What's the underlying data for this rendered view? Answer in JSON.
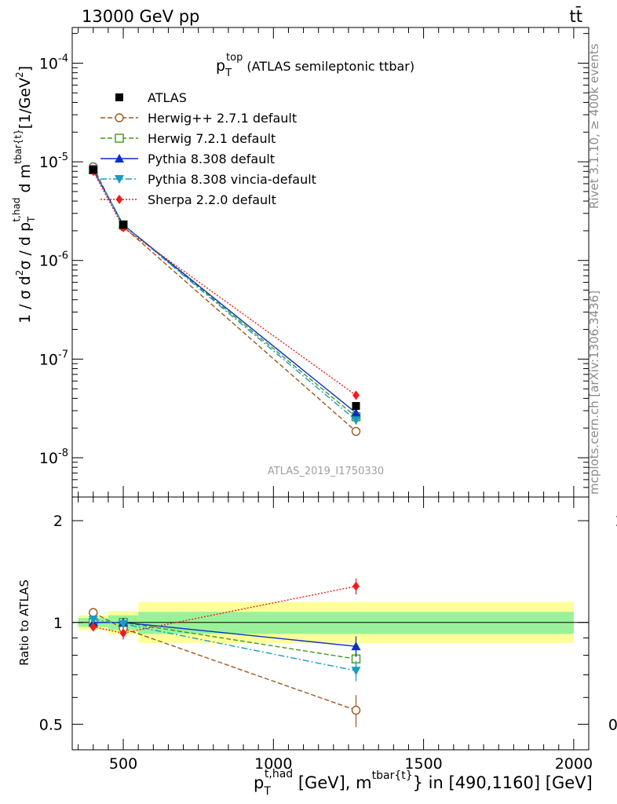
{
  "header": {
    "beam_label": "13000 GeV pp",
    "process_label": "tt̄"
  },
  "side_labels": {
    "rivet": "Rivet 3.1.10, ≥ 400k events",
    "mcplots": "mcplots.cern.ch [arXiv:1306.3436]"
  },
  "colors": {
    "ATLAS": "#000000",
    "Herwig++ 2.7.1 default": "#a0561d",
    "Herwig 7.2.1 default": "#3d9a1b",
    "Pythia 8.308 default": "#0a2fc8",
    "Pythia 8.308 vincia-default": "#1a9cc0",
    "Sherpa 2.2.0 default": "#ee1c1c",
    "band_inner": "#99f299",
    "band_outer": "#ffff99"
  },
  "chart_data": [
    {
      "type": "line",
      "panel": "main",
      "title_main": "p",
      "title_sup": "top",
      "title_sub": "T",
      "title_rest": " (ATLAS semileptonic ttbar)",
      "watermark": "ATLAS_2019_I1750330",
      "ylabel": "1 / σ d²σ / d pT^t,had d m^tbar{t} [1/GeV²]",
      "ylabel_parts": {
        "a": "1 / σ d",
        "b": "2",
        "c": "σ / d p",
        "d": "t,had",
        "e": "T",
        "f": " d m",
        "g": "tbar{t}",
        "h": "[1/GeV",
        "i": "2",
        "j": "]"
      },
      "yscale": "log",
      "ylim": [
        4e-09,
        0.00023
      ],
      "xlim": [
        330,
        2050
      ],
      "y_ticks": [
        {
          "value": 1e-08,
          "base": "10",
          "exp": "-8"
        },
        {
          "value": 1e-07,
          "base": "10",
          "exp": "-7"
        },
        {
          "value": 1e-06,
          "base": "10",
          "exp": "-6"
        },
        {
          "value": 1e-05,
          "base": "10",
          "exp": "-5"
        },
        {
          "value": 0.0001,
          "base": "10",
          "exp": "-4"
        }
      ],
      "x": [
        400,
        500,
        1275
      ],
      "series": [
        {
          "name": "ATLAS",
          "marker": "square-filled",
          "line": "none",
          "values": [
            8.3e-06,
            2.3e-06,
            3.35e-08
          ]
        },
        {
          "name": "Herwig++ 2.7.1 default",
          "marker": "circle-open",
          "line": "dashed",
          "values": [
            8.9e-06,
            2.2e-06,
            1.85e-08
          ]
        },
        {
          "name": "Herwig 7.2.1 default",
          "marker": "square-open",
          "line": "dashed",
          "values": [
            8.3e-06,
            2.3e-06,
            2.6e-08
          ]
        },
        {
          "name": "Pythia 8.308 default",
          "marker": "triangle-up",
          "line": "solid",
          "values": [
            8.3e-06,
            2.3e-06,
            2.85e-08
          ]
        },
        {
          "name": "Pythia 8.308 vincia-default",
          "marker": "triangle-down",
          "line": "dashdot",
          "values": [
            8.5e-06,
            2.3e-06,
            2.4e-08
          ]
        },
        {
          "name": "Sherpa 2.2.0 default",
          "marker": "diamond",
          "line": "dotted",
          "values": [
            8e-06,
            2.15e-06,
            4.3e-08
          ]
        }
      ]
    },
    {
      "type": "line",
      "panel": "ratio",
      "ylabel": "Ratio to ATLAS",
      "yscale": "log",
      "ylim": [
        0.42,
        2.35
      ],
      "xlim": [
        330,
        2050
      ],
      "y_ticks": [
        {
          "value": 0.5,
          "label": "0.5"
        },
        {
          "value": 1,
          "label": "1"
        },
        {
          "value": 2,
          "label": "2"
        }
      ],
      "x_ticks": [
        {
          "value": 500,
          "label": "500"
        },
        {
          "value": 1000,
          "label": "1000"
        },
        {
          "value": 1500,
          "label": "1500"
        },
        {
          "value": 2000,
          "label": "2000"
        }
      ],
      "xlabel": "pT^t,had [GeV], m^tbar{t} in [490,1160] [GeV]",
      "xlabel_parts": {
        "a": "p",
        "b": "t,had",
        "c": "T",
        "d": " [GeV], m",
        "e": "tbar{t}",
        "f": "} in [490,1160] [GeV]"
      },
      "bands": [
        {
          "x_range": [
            350,
            450
          ],
          "inner": [
            0.97,
            1.03
          ],
          "outer": [
            0.95,
            1.05
          ]
        },
        {
          "x_range": [
            450,
            550
          ],
          "inner": [
            0.95,
            1.05
          ],
          "outer": [
            0.92,
            1.08
          ]
        },
        {
          "x_range": [
            550,
            2000
          ],
          "inner": [
            0.925,
            1.075
          ],
          "outer": [
            0.87,
            1.15
          ]
        }
      ],
      "x": [
        400,
        500,
        1275
      ],
      "series": [
        {
          "name": "Herwig++ 2.7.1 default",
          "values": [
            1.07,
            0.96,
            0.55
          ],
          "errors": [
            0.02,
            0.04,
            0.06
          ]
        },
        {
          "name": "Herwig 7.2.1 default",
          "values": [
            1.0,
            1.0,
            0.78
          ],
          "errors": [
            0.02,
            0.03,
            0.05
          ]
        },
        {
          "name": "Pythia 8.308 default",
          "values": [
            1.0,
            1.0,
            0.85
          ],
          "errors": [
            0.02,
            0.03,
            0.06
          ]
        },
        {
          "name": "Pythia 8.308 vincia-default",
          "values": [
            1.02,
            0.99,
            0.72
          ],
          "errors": [
            0.02,
            0.03,
            0.05
          ]
        },
        {
          "name": "Sherpa 2.2.0 default",
          "values": [
            0.97,
            0.93,
            1.28
          ],
          "errors": [
            0.02,
            0.04,
            0.07
          ]
        }
      ]
    }
  ]
}
